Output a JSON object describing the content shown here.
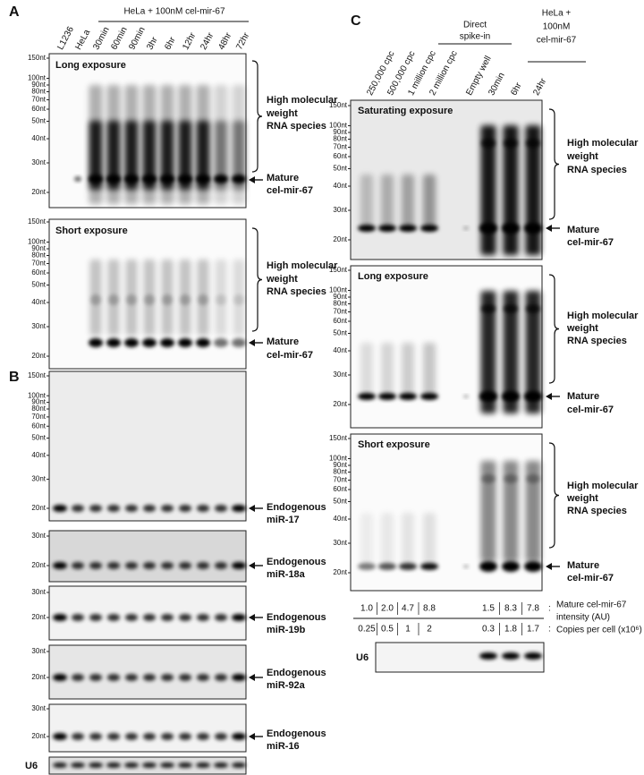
{
  "panel_a": {
    "label": "A",
    "group_header": "HeLa + 100nM cel-mir-67",
    "lanes": [
      "L1236",
      "HeLa",
      "30min",
      "60min",
      "90min",
      "3hr",
      "6hr",
      "12hr",
      "24hr",
      "48hr",
      "72hr"
    ],
    "blots": [
      {
        "title": "Long exposure",
        "markers": [
          "150nt",
          "100nt",
          "90nt",
          "80nt",
          "70nt",
          "60nt",
          "50nt",
          "40nt",
          "30nt",
          "20nt"
        ],
        "bracket_label": [
          "High molecular",
          "weight",
          "RNA species"
        ],
        "arrow_label": [
          "Mature",
          "cel-mir-67"
        ]
      },
      {
        "title": "Short exposure",
        "markers": [
          "150nt",
          "100nt",
          "90nt",
          "80nt",
          "70nt",
          "60nt",
          "50nt",
          "40nt",
          "30nt",
          "20nt"
        ],
        "bracket_label": [
          "High molecular",
          "weight",
          "RNA species"
        ],
        "arrow_label": [
          "Mature",
          "cel-mir-67"
        ]
      }
    ]
  },
  "panel_b": {
    "label": "B",
    "blots": [
      {
        "markers": [
          "150nt",
          "100nt",
          "90nt",
          "80nt",
          "70nt",
          "60nt",
          "50nt",
          "40nt",
          "30nt",
          "20nt"
        ],
        "arrow_label": [
          "Endogenous",
          "miR-17"
        ]
      },
      {
        "markers": [
          "30nt",
          "20nt"
        ],
        "arrow_label": [
          "Endogenous",
          "miR-18a"
        ]
      },
      {
        "markers": [
          "30nt",
          "20nt"
        ],
        "arrow_label": [
          "Endogenous",
          "miR-19b"
        ]
      },
      {
        "markers": [
          "30nt",
          "20nt"
        ],
        "arrow_label": [
          "Endogenous",
          "miR-92a"
        ]
      },
      {
        "markers": [
          "30nt",
          "20nt"
        ],
        "arrow_label": [
          "Endogenous",
          "miR-16"
        ]
      }
    ],
    "loading_control": "U6"
  },
  "panel_c": {
    "label": "C",
    "group_headers": [
      [
        "Direct",
        "spike-in"
      ],
      [
        "HeLa +",
        "100nM",
        "cel-mir-67"
      ]
    ],
    "lanes": [
      "250,000 cpc",
      "500,000 cpc",
      "1 million cpc",
      "2 million cpc",
      "Empty well",
      "30min",
      "6hr",
      "24hr"
    ],
    "blots": [
      {
        "title": "Saturating exposure",
        "markers": [
          "150nt",
          "100nt",
          "90nt",
          "80nt",
          "70nt",
          "60nt",
          "50nt",
          "40nt",
          "30nt",
          "20nt"
        ],
        "bracket_label": [
          "High molecular",
          "weight",
          "RNA species"
        ],
        "arrow_label": [
          "Mature",
          "cel-mir-67"
        ]
      },
      {
        "title": "Long exposure",
        "markers": [
          "150nt",
          "100nt",
          "90nt",
          "80nt",
          "70nt",
          "60nt",
          "50nt",
          "40nt",
          "30nt",
          "20nt"
        ],
        "bracket_label": [
          "High molecular",
          "weight",
          "RNA species"
        ],
        "arrow_label": [
          "Mature",
          "cel-mir-67"
        ]
      },
      {
        "title": "Short exposure",
        "markers": [
          "150nt",
          "100nt",
          "90nt",
          "80nt",
          "70nt",
          "60nt",
          "50nt",
          "40nt",
          "30nt",
          "20nt"
        ],
        "bracket_label": [
          "High molecular",
          "weight",
          "RNA species"
        ],
        "arrow_label": [
          "Mature",
          "cel-mir-67"
        ]
      }
    ],
    "table": {
      "rows": [
        {
          "values": [
            "1.0",
            "2.0",
            "4.7",
            "8.8",
            "1.5",
            "8.3",
            "7.8"
          ],
          "separator": ":",
          "label": [
            "Mature cel-mir-67",
            "intensity (AU)"
          ]
        },
        {
          "values": [
            "0.25",
            "0.5",
            "1",
            "2",
            "0.3",
            "1.8",
            "1.7"
          ],
          "separator": ":",
          "label": [
            "Copies per cell (x10⁶)"
          ]
        }
      ]
    },
    "loading_control": "U6"
  }
}
